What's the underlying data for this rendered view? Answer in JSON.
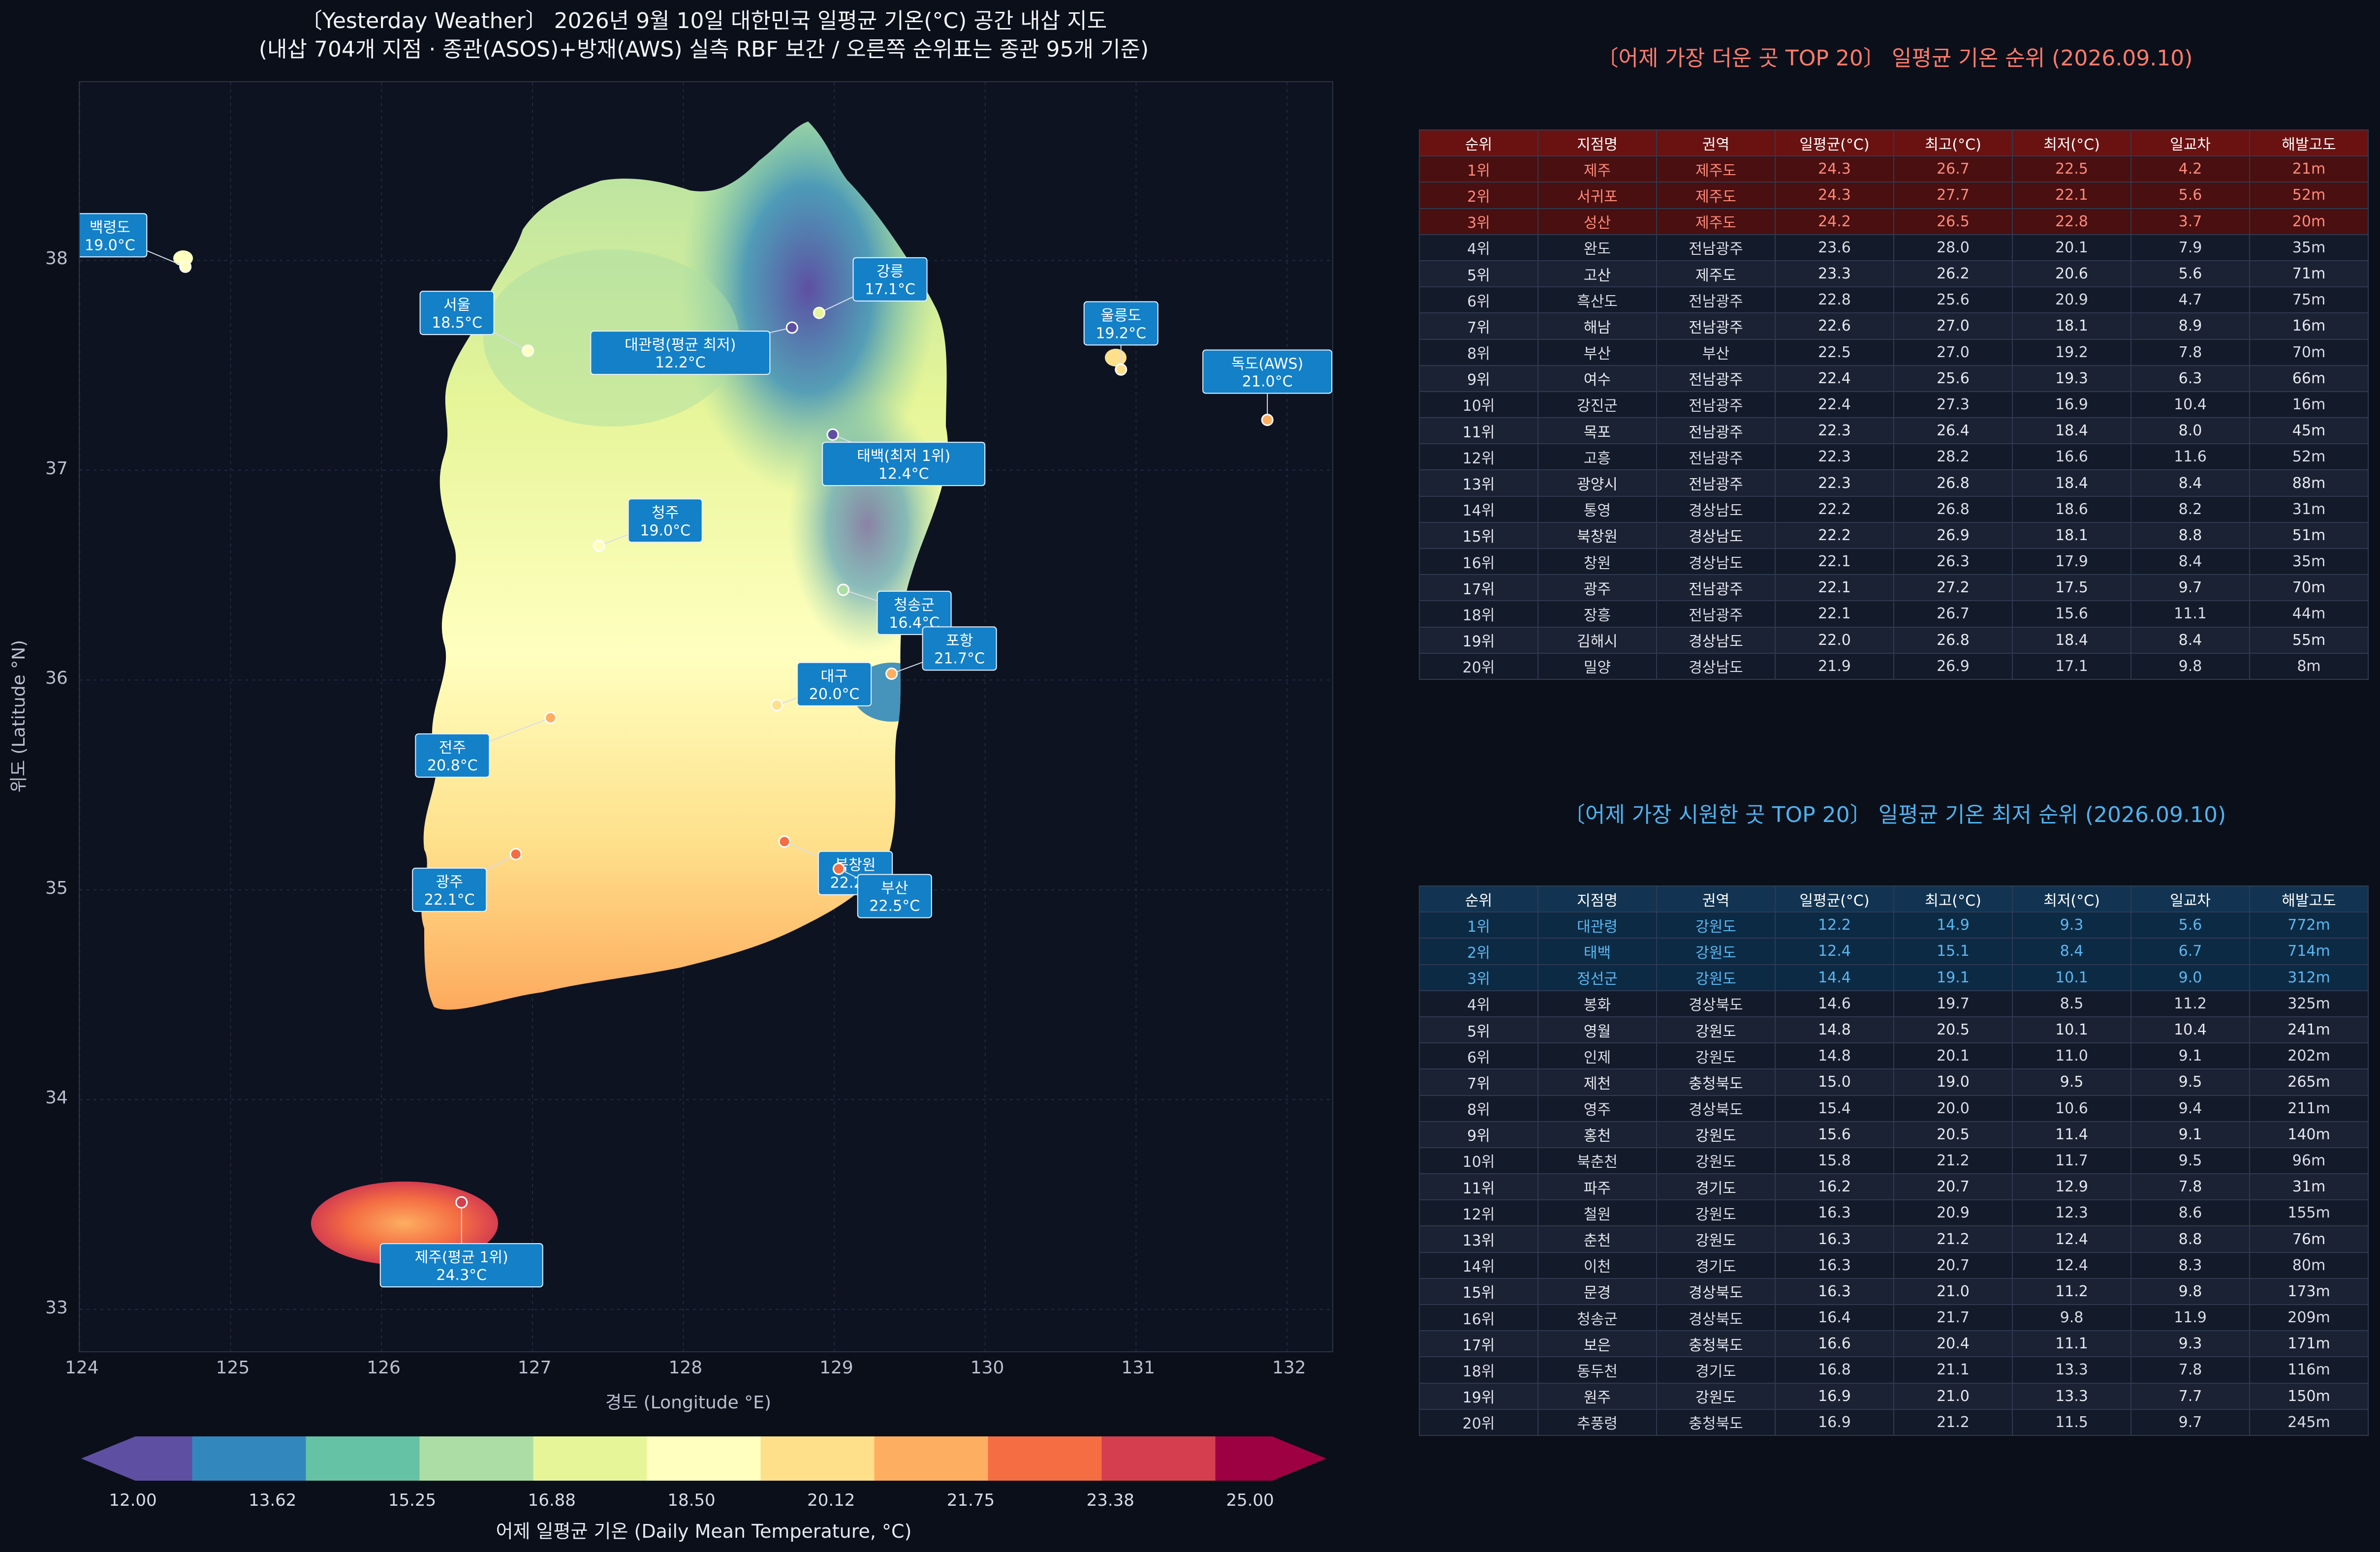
{
  "map": {
    "title_line1": "〔Yesterday Weather〕 2026년 9월 10일 대한민국 일평균 기온(°C) 공간 내삽 지도",
    "title_line2": "(내삽 704개 지점 · 종관(ASOS)+방재(AWS) 실측 RBF 보간 / 오른쪽 순위표는 종관 95개 기준)",
    "xlabel": "경도 (Longitude °E)",
    "ylabel": "위도 (Latitude °N)",
    "xlim": [
      124,
      132.3
    ],
    "ylim": [
      32.8,
      38.85
    ],
    "xticks": [
      "124",
      "125",
      "126",
      "127",
      "128",
      "129",
      "130",
      "131",
      "132"
    ],
    "yticks": [
      "33",
      "34",
      "35",
      "36",
      "37",
      "38"
    ],
    "grid": true
  },
  "colorbar": {
    "label": "어제 일평균 기온 (Daily Mean Temperature, °C)",
    "ticks": [
      "12.00",
      "13.62",
      "15.25",
      "16.88",
      "18.50",
      "20.12",
      "21.75",
      "23.38",
      "25.00"
    ],
    "min": 12,
    "max": 25,
    "colormap": "Spectral_r",
    "colors": [
      "#5e4fa2",
      "#3288bd",
      "#66c2a5",
      "#abdda4",
      "#e6f598",
      "#ffffbf",
      "#fee08b",
      "#fdae61",
      "#f46d43",
      "#d53e4f",
      "#9e0142"
    ]
  },
  "chart_data": [
    {
      "type": "scatter",
      "description_of_mark": "labeled stations on interpolated temperature map",
      "points": [
        {
          "name": "백령도",
          "value": "19.0°C",
          "temp": 19.0,
          "lon": 124.7,
          "lat": 37.97,
          "label_lon": 124.2,
          "label_lat": 38.12
        },
        {
          "name": "서울",
          "value": "18.5°C",
          "temp": 18.5,
          "lon": 126.97,
          "lat": 37.57,
          "label_lon": 126.5,
          "label_lat": 37.75
        },
        {
          "name": "대관령(평균 최저)",
          "value": "12.2°C",
          "temp": 12.2,
          "lon": 128.72,
          "lat": 37.68,
          "label_lon": 127.98,
          "label_lat": 37.56
        },
        {
          "name": "강릉",
          "value": "17.1°C",
          "temp": 17.1,
          "lon": 128.9,
          "lat": 37.75,
          "label_lon": 129.37,
          "label_lat": 37.91
        },
        {
          "name": "울릉도",
          "value": "19.2°C",
          "temp": 19.2,
          "lon": 130.9,
          "lat": 37.48,
          "label_lon": 130.9,
          "label_lat": 37.7
        },
        {
          "name": "독도(AWS)",
          "value": "21.0°C",
          "temp": 21.0,
          "lon": 131.87,
          "lat": 37.24,
          "label_lon": 131.87,
          "label_lat": 37.47
        },
        {
          "name": "태백(최저 1위)",
          "value": "12.4°C",
          "temp": 12.4,
          "lon": 128.99,
          "lat": 37.17,
          "label_lon": 129.46,
          "label_lat": 37.03
        },
        {
          "name": "청주",
          "value": "19.0°C",
          "temp": 19.0,
          "lon": 127.44,
          "lat": 36.64,
          "label_lon": 127.88,
          "label_lat": 36.76
        },
        {
          "name": "청송군",
          "value": "16.4°C",
          "temp": 16.4,
          "lon": 129.06,
          "lat": 36.43,
          "label_lon": 129.53,
          "label_lat": 36.32
        },
        {
          "name": "포항",
          "value": "21.7°C",
          "temp": 21.7,
          "lon": 129.38,
          "lat": 36.03,
          "label_lon": 129.83,
          "label_lat": 36.15
        },
        {
          "name": "대구",
          "value": "20.0°C",
          "temp": 20.0,
          "lon": 128.62,
          "lat": 35.88,
          "label_lon": 129.0,
          "label_lat": 35.98
        },
        {
          "name": "전주",
          "value": "20.8°C",
          "temp": 20.8,
          "lon": 127.12,
          "lat": 35.82,
          "label_lon": 126.47,
          "label_lat": 35.64
        },
        {
          "name": "광주",
          "value": "22.1°C",
          "temp": 22.1,
          "lon": 126.89,
          "lat": 35.17,
          "label_lon": 126.45,
          "label_lat": 35.0
        },
        {
          "name": "북창원",
          "value": "22.2°C",
          "temp": 22.2,
          "lon": 128.67,
          "lat": 35.23,
          "label_lon": 129.14,
          "label_lat": 35.08
        },
        {
          "name": "부산",
          "value": "22.5°C",
          "temp": 22.5,
          "lon": 129.03,
          "lat": 35.1,
          "label_lon": 129.4,
          "label_lat": 34.97
        },
        {
          "name": "제주(평균 1위)",
          "value": "24.3°C",
          "temp": 24.3,
          "lon": 126.53,
          "lat": 33.51,
          "label_lon": 126.53,
          "label_lat": 33.21
        }
      ]
    },
    {
      "type": "table",
      "title": "〔어제 가장 더운 곳 TOP 20〕 일평균 기온 순위 (2026.09.10)",
      "columns": [
        "순위",
        "지점명",
        "권역",
        "일평균(°C)",
        "최고(°C)",
        "최저(°C)",
        "일교차",
        "해발고도"
      ],
      "rows": [
        [
          "1위",
          "제주",
          "제주도",
          "24.3",
          "26.7",
          "22.5",
          "4.2",
          "21m"
        ],
        [
          "2위",
          "서귀포",
          "제주도",
          "24.3",
          "27.7",
          "22.1",
          "5.6",
          "52m"
        ],
        [
          "3위",
          "성산",
          "제주도",
          "24.2",
          "26.5",
          "22.8",
          "3.7",
          "20m"
        ],
        [
          "4위",
          "완도",
          "전남광주",
          "23.6",
          "28.0",
          "20.1",
          "7.9",
          "35m"
        ],
        [
          "5위",
          "고산",
          "제주도",
          "23.3",
          "26.2",
          "20.6",
          "5.6",
          "71m"
        ],
        [
          "6위",
          "흑산도",
          "전남광주",
          "22.8",
          "25.6",
          "20.9",
          "4.7",
          "75m"
        ],
        [
          "7위",
          "해남",
          "전남광주",
          "22.6",
          "27.0",
          "18.1",
          "8.9",
          "16m"
        ],
        [
          "8위",
          "부산",
          "부산",
          "22.5",
          "27.0",
          "19.2",
          "7.8",
          "70m"
        ],
        [
          "9위",
          "여수",
          "전남광주",
          "22.4",
          "25.6",
          "19.3",
          "6.3",
          "66m"
        ],
        [
          "10위",
          "강진군",
          "전남광주",
          "22.4",
          "27.3",
          "16.9",
          "10.4",
          "16m"
        ],
        [
          "11위",
          "목포",
          "전남광주",
          "22.3",
          "26.4",
          "18.4",
          "8.0",
          "45m"
        ],
        [
          "12위",
          "고흥",
          "전남광주",
          "22.3",
          "28.2",
          "16.6",
          "11.6",
          "52m"
        ],
        [
          "13위",
          "광양시",
          "전남광주",
          "22.3",
          "26.8",
          "18.4",
          "8.4",
          "88m"
        ],
        [
          "14위",
          "통영",
          "경상남도",
          "22.2",
          "26.8",
          "18.6",
          "8.2",
          "31m"
        ],
        [
          "15위",
          "북창원",
          "경상남도",
          "22.2",
          "26.9",
          "18.1",
          "8.8",
          "51m"
        ],
        [
          "16위",
          "창원",
          "경상남도",
          "22.1",
          "26.3",
          "17.9",
          "8.4",
          "35m"
        ],
        [
          "17위",
          "광주",
          "전남광주",
          "22.1",
          "27.2",
          "17.5",
          "9.7",
          "70m"
        ],
        [
          "18위",
          "장흥",
          "전남광주",
          "22.1",
          "26.7",
          "15.6",
          "11.1",
          "44m"
        ],
        [
          "19위",
          "김해시",
          "경상남도",
          "22.0",
          "26.8",
          "18.4",
          "8.4",
          "55m"
        ],
        [
          "20위",
          "밀양",
          "경상남도",
          "21.9",
          "26.9",
          "17.1",
          "9.8",
          "8m"
        ]
      ]
    },
    {
      "type": "table",
      "title": "〔어제 가장 시원한 곳 TOP 20〕 일평균 기온 최저 순위 (2026.09.10)",
      "columns": [
        "순위",
        "지점명",
        "권역",
        "일평균(°C)",
        "최고(°C)",
        "최저(°C)",
        "일교차",
        "해발고도"
      ],
      "rows": [
        [
          "1위",
          "대관령",
          "강원도",
          "12.2",
          "14.9",
          "9.3",
          "5.6",
          "772m"
        ],
        [
          "2위",
          "태백",
          "강원도",
          "12.4",
          "15.1",
          "8.4",
          "6.7",
          "714m"
        ],
        [
          "3위",
          "정선군",
          "강원도",
          "14.4",
          "19.1",
          "10.1",
          "9.0",
          "312m"
        ],
        [
          "4위",
          "봉화",
          "경상북도",
          "14.6",
          "19.7",
          "8.5",
          "11.2",
          "325m"
        ],
        [
          "5위",
          "영월",
          "강원도",
          "14.8",
          "20.5",
          "10.1",
          "10.4",
          "241m"
        ],
        [
          "6위",
          "인제",
          "강원도",
          "14.8",
          "20.1",
          "11.0",
          "9.1",
          "202m"
        ],
        [
          "7위",
          "제천",
          "충청북도",
          "15.0",
          "19.0",
          "9.5",
          "9.5",
          "265m"
        ],
        [
          "8위",
          "영주",
          "경상북도",
          "15.4",
          "20.0",
          "10.6",
          "9.4",
          "211m"
        ],
        [
          "9위",
          "홍천",
          "강원도",
          "15.6",
          "20.5",
          "11.4",
          "9.1",
          "140m"
        ],
        [
          "10위",
          "북춘천",
          "강원도",
          "15.8",
          "21.2",
          "11.7",
          "9.5",
          "96m"
        ],
        [
          "11위",
          "파주",
          "경기도",
          "16.2",
          "20.7",
          "12.9",
          "7.8",
          "31m"
        ],
        [
          "12위",
          "철원",
          "강원도",
          "16.3",
          "20.9",
          "12.3",
          "8.6",
          "155m"
        ],
        [
          "13위",
          "춘천",
          "강원도",
          "16.3",
          "21.2",
          "12.4",
          "8.8",
          "76m"
        ],
        [
          "14위",
          "이천",
          "경기도",
          "16.3",
          "20.7",
          "12.4",
          "8.3",
          "80m"
        ],
        [
          "15위",
          "문경",
          "경상북도",
          "16.3",
          "21.0",
          "11.2",
          "9.8",
          "173m"
        ],
        [
          "16위",
          "청송군",
          "경상북도",
          "16.4",
          "21.7",
          "9.8",
          "11.9",
          "209m"
        ],
        [
          "17위",
          "보은",
          "충청북도",
          "16.6",
          "20.4",
          "11.1",
          "9.3",
          "171m"
        ],
        [
          "18위",
          "동두천",
          "경기도",
          "16.8",
          "21.1",
          "13.3",
          "7.8",
          "116m"
        ],
        [
          "19위",
          "원주",
          "강원도",
          "16.9",
          "21.0",
          "13.3",
          "7.7",
          "150m"
        ],
        [
          "20위",
          "추풍령",
          "충청북도",
          "16.9",
          "21.2",
          "11.5",
          "9.7",
          "245m"
        ]
      ]
    }
  ],
  "colors": {
    "background": "#0b0f1a",
    "panel": "#0e1322",
    "hot_title": "#ff7b6b",
    "cold_title": "#4db3ee",
    "label_box": "#1380c8"
  }
}
